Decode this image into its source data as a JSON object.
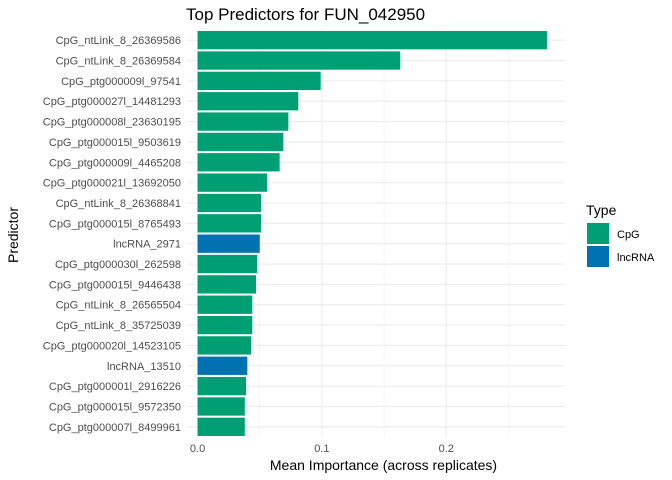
{
  "chart_data": {
    "type": "bar",
    "orientation": "horizontal",
    "title": "Top Predictors for FUN_042950",
    "xlabel": "Mean Importance (across replicates)",
    "ylabel": "Predictor",
    "xlim": [
      -0.0085,
      0.2955
    ],
    "x_ticks": [
      0.0,
      0.1,
      0.2
    ],
    "x_tick_labels": [
      "0.0",
      "0.1",
      "0.2"
    ],
    "grid": true,
    "legend": {
      "title": "Type",
      "position": "right",
      "entries": [
        {
          "label": "CpG",
          "color": "#009E73"
        },
        {
          "label": "lncRNA",
          "color": "#0072B2"
        }
      ]
    },
    "categories": [
      "CpG_ntLink_8_26369586",
      "CpG_ntLink_8_26369584",
      "CpG_ptg000009l_97541",
      "CpG_ptg000027l_14481293",
      "CpG_ptg000008l_23630195",
      "CpG_ptg000015l_9503619",
      "CpG_ptg000009l_4465208",
      "CpG_ptg000021l_13692050",
      "CpG_ntLink_8_26368841",
      "CpG_ptg000015l_8765493",
      "lncRNA_2971",
      "CpG_ptg000030l_262598",
      "CpG_ptg000015l_9446438",
      "CpG_ntLink_8_26565504",
      "CpG_ntLink_8_35725039",
      "CpG_ptg000020l_14523105",
      "lncRNA_13510",
      "CpG_ptg000001l_2916226",
      "CpG_ptg000015l_9572350",
      "CpG_ptg000007l_8499961"
    ],
    "values": [
      0.281,
      0.163,
      0.099,
      0.081,
      0.073,
      0.069,
      0.066,
      0.056,
      0.051,
      0.051,
      0.05,
      0.048,
      0.047,
      0.044,
      0.044,
      0.043,
      0.04,
      0.039,
      0.038,
      0.038
    ],
    "types": [
      "CpG",
      "CpG",
      "CpG",
      "CpG",
      "CpG",
      "CpG",
      "CpG",
      "CpG",
      "CpG",
      "CpG",
      "lncRNA",
      "CpG",
      "CpG",
      "CpG",
      "CpG",
      "CpG",
      "lncRNA",
      "CpG",
      "CpG",
      "CpG"
    ]
  }
}
